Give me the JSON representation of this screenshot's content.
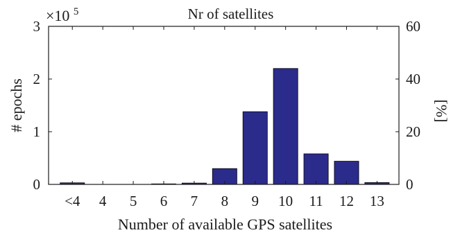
{
  "chart_data": {
    "type": "bar",
    "title": "Nr of satellites",
    "xlabel": "Number of available GPS satellites",
    "ylabel": "# epochs",
    "ylabel_right": "[%]",
    "y_exponent_label": "×10",
    "y_exponent_power": "5",
    "categories": [
      "<4",
      "4",
      "5",
      "6",
      "7",
      "8",
      "9",
      "10",
      "11",
      "12",
      "13"
    ],
    "values": [
      3000,
      0,
      0,
      1000,
      2500,
      30000,
      138000,
      220000,
      58000,
      44000,
      3500
    ],
    "ylim": [
      0,
      300000
    ],
    "y_ticks": [
      0,
      100000,
      200000,
      300000
    ],
    "y_tick_labels": [
      "0",
      "1",
      "2",
      "3"
    ],
    "y2lim": [
      0,
      60
    ],
    "y2_ticks": [
      0,
      20,
      40,
      60
    ],
    "y2_tick_labels": [
      "0",
      "20",
      "40",
      "60"
    ],
    "grid": false,
    "bar_color": "#2b2b8c",
    "bar_edge_color": "#000000"
  }
}
